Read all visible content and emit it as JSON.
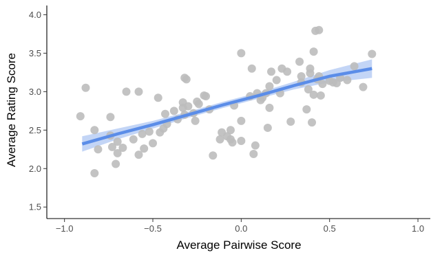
{
  "chart_data": {
    "type": "scatter",
    "title": "",
    "xlabel": "Average Pairwise Score",
    "ylabel": "Average Rating Score",
    "xlim": [
      -1.1,
      1.07
    ],
    "ylim": [
      1.35,
      4.12
    ],
    "x_ticks": [
      -1.0,
      -0.5,
      0.0,
      0.5,
      1.0
    ],
    "x_tick_labels": [
      "−1.0",
      "−0.5",
      "0.0",
      "0.5",
      "1.0"
    ],
    "y_ticks": [
      1.5,
      2.0,
      2.5,
      3.0,
      3.5,
      4.0
    ],
    "y_tick_labels": [
      "1.5",
      "2.0",
      "2.5",
      "3.0",
      "3.5",
      "4.0"
    ],
    "grid": false,
    "legend": "none",
    "point_color": "#bdbdbd",
    "line_color": "#5b8de8",
    "band_color": "#a9c3f2",
    "regression": {
      "x": [
        -0.9,
        -0.7,
        -0.5,
        -0.3,
        -0.1,
        0.1,
        0.3,
        0.5,
        0.74
      ],
      "y": [
        2.32,
        2.45,
        2.57,
        2.7,
        2.83,
        2.95,
        3.08,
        3.2,
        3.3
      ],
      "lower": [
        2.22,
        2.38,
        2.52,
        2.66,
        2.79,
        2.91,
        3.03,
        3.12,
        3.18
      ],
      "upper": [
        2.42,
        2.52,
        2.62,
        2.74,
        2.87,
        2.99,
        3.13,
        3.28,
        3.42
      ]
    },
    "points": [
      {
        "x": -0.91,
        "y": 2.68
      },
      {
        "x": -0.88,
        "y": 3.05
      },
      {
        "x": -0.83,
        "y": 1.94
      },
      {
        "x": -0.83,
        "y": 2.5
      },
      {
        "x": -0.81,
        "y": 2.25
      },
      {
        "x": -0.74,
        "y": 2.67
      },
      {
        "x": -0.74,
        "y": 2.43
      },
      {
        "x": -0.73,
        "y": 2.28
      },
      {
        "x": -0.71,
        "y": 2.06
      },
      {
        "x": -0.7,
        "y": 2.2
      },
      {
        "x": -0.7,
        "y": 2.35
      },
      {
        "x": -0.67,
        "y": 2.27
      },
      {
        "x": -0.65,
        "y": 3.0
      },
      {
        "x": -0.61,
        "y": 2.38
      },
      {
        "x": -0.58,
        "y": 3.0
      },
      {
        "x": -0.58,
        "y": 2.18
      },
      {
        "x": -0.56,
        "y": 2.45
      },
      {
        "x": -0.55,
        "y": 2.26
      },
      {
        "x": -0.52,
        "y": 2.48
      },
      {
        "x": -0.5,
        "y": 2.33
      },
      {
        "x": -0.47,
        "y": 2.92
      },
      {
        "x": -0.46,
        "y": 2.47
      },
      {
        "x": -0.44,
        "y": 2.52
      },
      {
        "x": -0.43,
        "y": 2.71
      },
      {
        "x": -0.42,
        "y": 2.58
      },
      {
        "x": -0.38,
        "y": 2.75
      },
      {
        "x": -0.36,
        "y": 2.64
      },
      {
        "x": -0.33,
        "y": 2.86
      },
      {
        "x": -0.33,
        "y": 2.79
      },
      {
        "x": -0.32,
        "y": 2.7
      },
      {
        "x": -0.32,
        "y": 3.18
      },
      {
        "x": -0.31,
        "y": 3.16
      },
      {
        "x": -0.3,
        "y": 2.81
      },
      {
        "x": -0.27,
        "y": 2.72
      },
      {
        "x": -0.26,
        "y": 2.62
      },
      {
        "x": -0.25,
        "y": 2.87
      },
      {
        "x": -0.24,
        "y": 2.84
      },
      {
        "x": -0.21,
        "y": 2.95
      },
      {
        "x": -0.2,
        "y": 2.94
      },
      {
        "x": -0.18,
        "y": 2.77
      },
      {
        "x": -0.16,
        "y": 2.17
      },
      {
        "x": -0.12,
        "y": 2.38
      },
      {
        "x": -0.11,
        "y": 2.47
      },
      {
        "x": -0.08,
        "y": 2.42
      },
      {
        "x": -0.06,
        "y": 2.38
      },
      {
        "x": -0.06,
        "y": 2.5
      },
      {
        "x": -0.05,
        "y": 2.34
      },
      {
        "x": -0.04,
        "y": 2.82
      },
      {
        "x": 0.0,
        "y": 2.36
      },
      {
        "x": 0.0,
        "y": 2.62
      },
      {
        "x": 0.0,
        "y": 3.5
      },
      {
        "x": 0.05,
        "y": 2.94
      },
      {
        "x": 0.06,
        "y": 3.3
      },
      {
        "x": 0.07,
        "y": 2.19
      },
      {
        "x": 0.08,
        "y": 2.3
      },
      {
        "x": 0.09,
        "y": 2.98
      },
      {
        "x": 0.11,
        "y": 2.89
      },
      {
        "x": 0.12,
        "y": 2.92
      },
      {
        "x": 0.14,
        "y": 2.98
      },
      {
        "x": 0.15,
        "y": 2.53
      },
      {
        "x": 0.16,
        "y": 2.79
      },
      {
        "x": 0.16,
        "y": 3.07
      },
      {
        "x": 0.17,
        "y": 3.26
      },
      {
        "x": 0.2,
        "y": 3.15
      },
      {
        "x": 0.22,
        "y": 2.98
      },
      {
        "x": 0.23,
        "y": 3.3
      },
      {
        "x": 0.26,
        "y": 3.26
      },
      {
        "x": 0.28,
        "y": 2.61
      },
      {
        "x": 0.33,
        "y": 3.39
      },
      {
        "x": 0.34,
        "y": 3.12
      },
      {
        "x": 0.34,
        "y": 3.2
      },
      {
        "x": 0.37,
        "y": 2.77
      },
      {
        "x": 0.38,
        "y": 3.03
      },
      {
        "x": 0.39,
        "y": 3.24
      },
      {
        "x": 0.39,
        "y": 3.3
      },
      {
        "x": 0.4,
        "y": 2.6
      },
      {
        "x": 0.41,
        "y": 3.52
      },
      {
        "x": 0.41,
        "y": 2.96
      },
      {
        "x": 0.42,
        "y": 3.79
      },
      {
        "x": 0.43,
        "y": 3.16
      },
      {
        "x": 0.44,
        "y": 3.8
      },
      {
        "x": 0.44,
        "y": 3.2
      },
      {
        "x": 0.45,
        "y": 2.95
      },
      {
        "x": 0.46,
        "y": 3.1
      },
      {
        "x": 0.5,
        "y": 3.14
      },
      {
        "x": 0.52,
        "y": 3.12
      },
      {
        "x": 0.54,
        "y": 3.11
      },
      {
        "x": 0.56,
        "y": 3.18
      },
      {
        "x": 0.6,
        "y": 3.15
      },
      {
        "x": 0.64,
        "y": 3.33
      },
      {
        "x": 0.69,
        "y": 3.06
      },
      {
        "x": 0.74,
        "y": 3.49
      }
    ]
  }
}
